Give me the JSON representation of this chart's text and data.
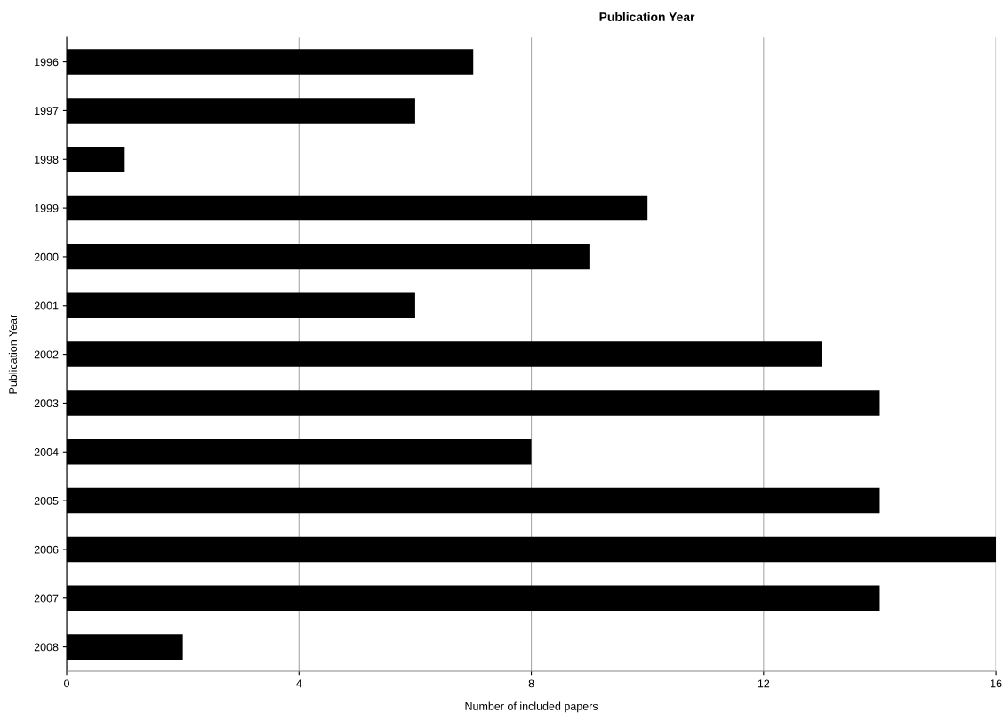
{
  "chart_data": {
    "type": "bar",
    "orientation": "horizontal",
    "title": "Publication Year",
    "xlabel": "Number of included papers",
    "ylabel": "Publication Year",
    "categories": [
      "1996",
      "1997",
      "1998",
      "1999",
      "2000",
      "2001",
      "2002",
      "2003",
      "2004",
      "2005",
      "2006",
      "2007",
      "2008"
    ],
    "values": [
      7,
      6,
      1,
      10,
      9,
      6,
      13,
      14,
      8,
      14,
      16,
      14,
      2
    ],
    "color": "#000000",
    "xlim": [
      0,
      16
    ],
    "xticks": [
      0,
      4,
      8,
      12,
      16
    ],
    "grid": "x",
    "legend": false
  }
}
